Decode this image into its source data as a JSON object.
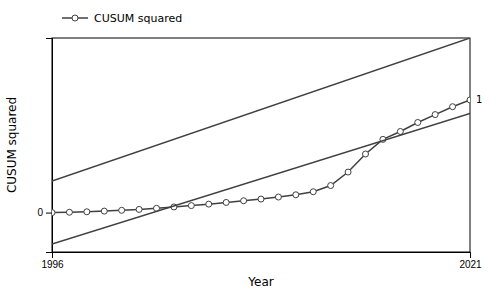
{
  "chart_data": {
    "type": "line",
    "xlabel": "Year",
    "ylabel": "CUSUM squared",
    "xlim": [
      1996,
      2021
    ],
    "ylim": [
      -0.35,
      1.55
    ],
    "xticks": [
      1996,
      2021
    ],
    "yticks": [
      0
    ],
    "grid": false,
    "legend": "top-left",
    "series": [
      {
        "name": "CUSUM squared",
        "color": "#404040",
        "marker": "circle",
        "x": [
          1996,
          1997.0416666666667,
          1998.0833333333333,
          1999.125,
          2000.1666666666667,
          2001.2083333333333,
          2002.25,
          2003.2916666666667,
          2004.3333333333333,
          2005.375,
          2006.4166666666667,
          2007.4583333333333,
          2008.5,
          2009.5416666666667,
          2010.5833333333333,
          2011.625,
          2012.6666666666667,
          2013.7083333333333,
          2014.75,
          2015.7916666666667,
          2016.8333333333333,
          2017.875,
          2018.9166666666667,
          2019.9583333333333,
          2021
        ],
        "values": [
          0.0,
          0.003,
          0.007,
          0.013,
          0.02,
          0.028,
          0.038,
          0.05,
          0.062,
          0.075,
          0.09,
          0.105,
          0.12,
          0.138,
          0.158,
          0.185,
          0.24,
          0.36,
          0.52,
          0.65,
          0.72,
          0.8,
          0.87,
          0.94,
          1.0
        ]
      },
      {
        "color": "#404040",
        "x": [
          1996,
          2021
        ],
        "values": [
          0.28,
          1.55
        ]
      },
      {
        "color": "#404040",
        "x": [
          1996,
          2021
        ],
        "values": [
          -0.28,
          0.88
        ]
      }
    ],
    "annotations": [
      {
        "text": "1",
        "y": 1
      }
    ]
  }
}
